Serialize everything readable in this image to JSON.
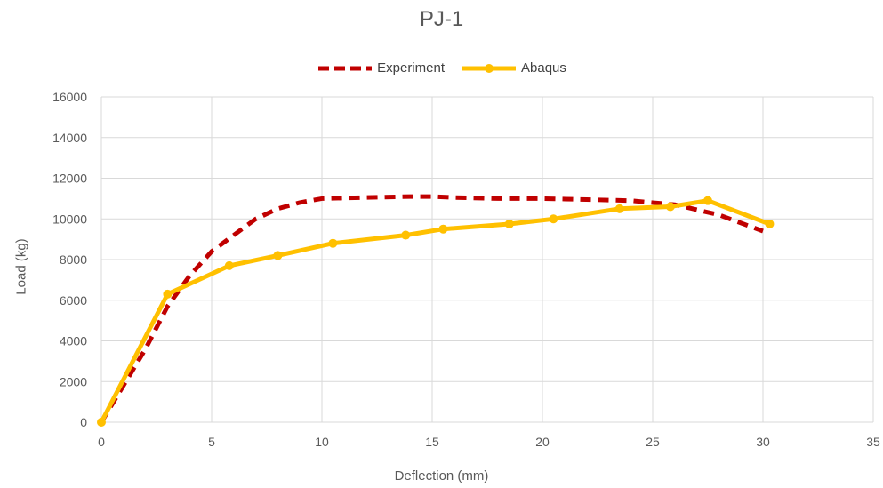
{
  "chart_data": {
    "type": "line",
    "title": "PJ-1",
    "xlabel": "Deflection (mm)",
    "ylabel": "Load (kg)",
    "xlim": [
      0,
      35
    ],
    "ylim": [
      0,
      16000
    ],
    "x_ticks": [
      0,
      5,
      10,
      15,
      20,
      25,
      30,
      35
    ],
    "y_ticks": [
      0,
      2000,
      4000,
      6000,
      8000,
      10000,
      12000,
      14000,
      16000
    ],
    "grid": true,
    "legend_position": "top",
    "series": [
      {
        "name": "Experiment",
        "color": "#C00000",
        "style": "dashed",
        "markers": false,
        "x": [
          0,
          1,
          2,
          3,
          4,
          5,
          6,
          7,
          8,
          9,
          10,
          12,
          14,
          15,
          16,
          18,
          20,
          22,
          24,
          26,
          28,
          30
        ],
        "y": [
          0,
          1800,
          3600,
          5700,
          7200,
          8400,
          9200,
          10000,
          10500,
          10800,
          11000,
          11050,
          11100,
          11100,
          11050,
          11000,
          11000,
          10950,
          10900,
          10700,
          10200,
          9400
        ]
      },
      {
        "name": "Abaqus",
        "color": "#FFC000",
        "style": "solid",
        "markers": true,
        "x": [
          0,
          3,
          5.8,
          8,
          10.5,
          13.8,
          15.5,
          18.5,
          20.5,
          23.5,
          25.8,
          27.5,
          30.3
        ],
        "y": [
          0,
          6300,
          7700,
          8200,
          8800,
          9200,
          9500,
          9750,
          10000,
          10500,
          10600,
          10900,
          9750
        ]
      }
    ]
  }
}
